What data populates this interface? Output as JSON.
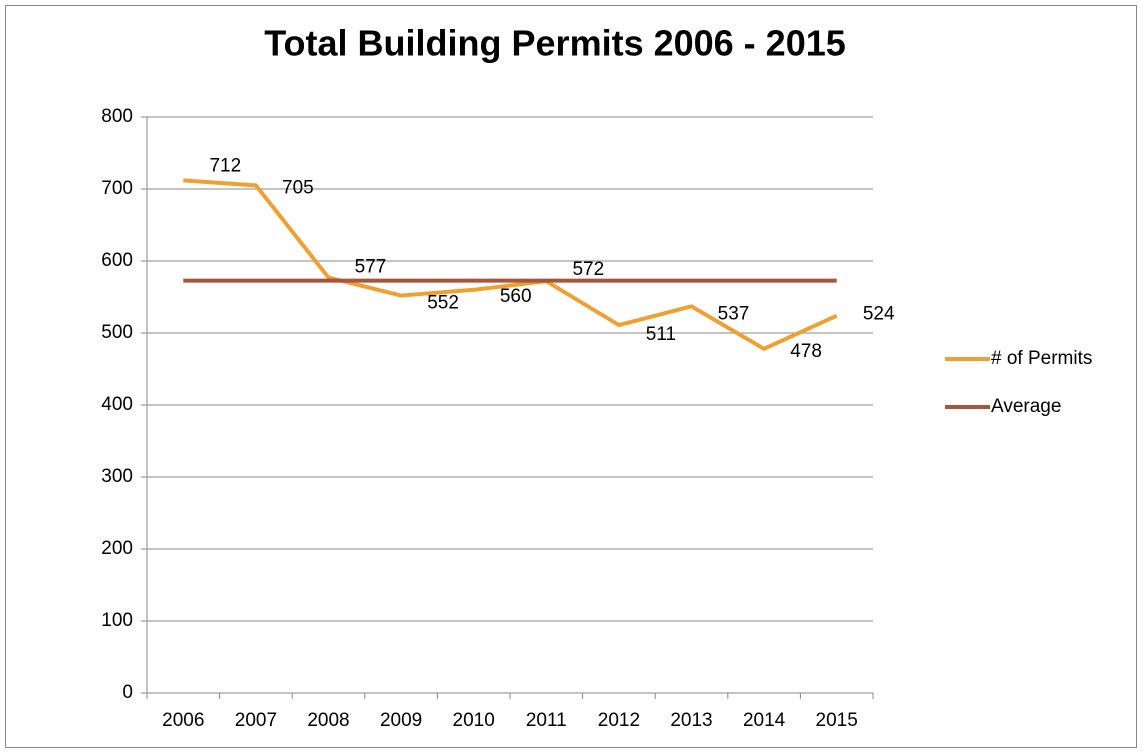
{
  "chart_data": {
    "type": "line",
    "title": "Total Building Permits 2006 - 2015",
    "categories": [
      "2006",
      "2007",
      "2008",
      "2009",
      "2010",
      "2011",
      "2012",
      "2013",
      "2014",
      "2015"
    ],
    "series": [
      {
        "name": "# of Permits",
        "color": "#f0a030",
        "values": [
          712,
          705,
          577,
          552,
          560,
          572,
          511,
          537,
          478,
          524
        ]
      },
      {
        "name": "Average",
        "color": "#a5563c",
        "values": [
          572.8,
          572.8,
          572.8,
          572.8,
          572.8,
          572.8,
          572.8,
          572.8,
          572.8,
          572.8
        ]
      }
    ],
    "ylim": [
      0,
      800
    ],
    "yticks": [
      0,
      100,
      200,
      300,
      400,
      500,
      600,
      700,
      800
    ],
    "grid": true,
    "legend": "right"
  }
}
